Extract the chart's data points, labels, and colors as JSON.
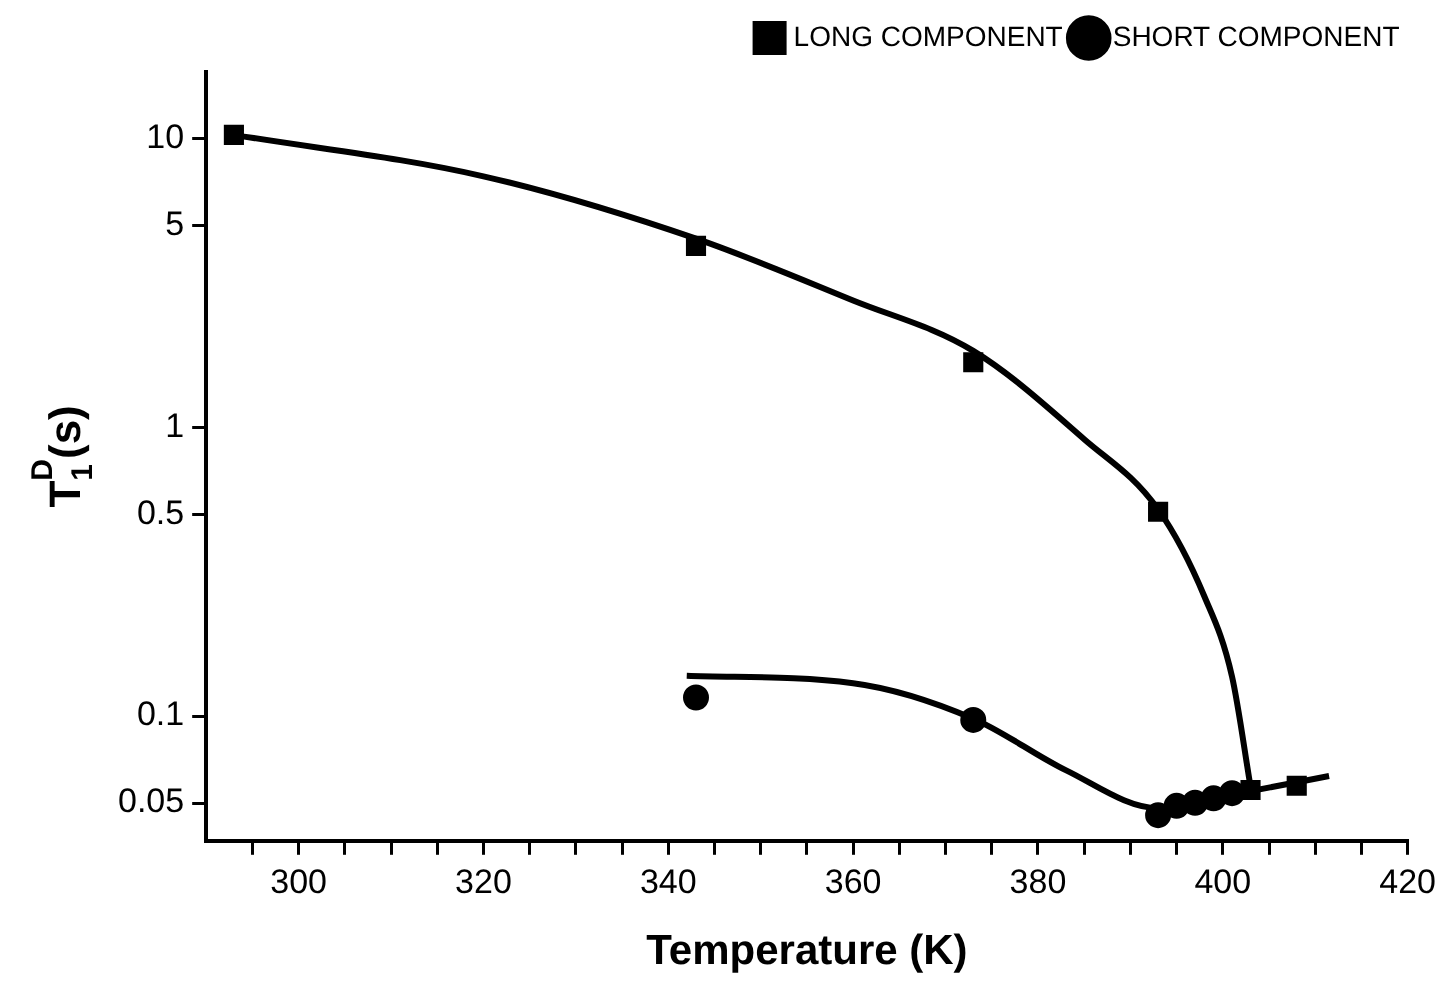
{
  "chart_data": {
    "type": "scatter",
    "xlabel": "Temperature (K)",
    "ylabel": "T$_{1}$$^{D}$(s)",
    "log": "y",
    "xlim": [
      290,
      420
    ],
    "xticks": [
      {
        "value": 295,
        "label": null
      },
      300,
      {
        "value": 305,
        "label": null
      },
      {
        "value": 310,
        "label": null
      },
      {
        "value": 315,
        "label": null
      },
      320,
      {
        "value": 325,
        "label": null
      },
      {
        "value": 330,
        "label": null
      },
      {
        "value": 335,
        "label": null
      },
      340,
      {
        "value": 345,
        "label": null
      },
      {
        "value": 350,
        "label": null
      },
      {
        "value": 355,
        "label": null
      },
      360,
      {
        "value": 365,
        "label": null
      },
      {
        "value": 370,
        "label": null
      },
      {
        "value": 375,
        "label": null
      },
      380,
      {
        "value": 385,
        "label": null
      },
      {
        "value": 390,
        "label": null
      },
      {
        "value": 395,
        "label": null
      },
      400,
      {
        "value": 405,
        "label": null
      },
      {
        "value": 410,
        "label": null
      },
      {
        "value": 415,
        "label": null
      },
      420
    ],
    "ylim": [
      0.037,
      17
    ],
    "yticks": [
      0.05,
      0.1,
      0.5,
      1,
      5,
      10
    ],
    "grid": false,
    "legend": "top right",
    "series": [
      {
        "name": "LONG COMPONENT",
        "color": "#000000",
        "marker": "square",
        "x": [
          293,
          343,
          373,
          393,
          403,
          408
        ],
        "values": [
          10.3,
          4.25,
          1.68,
          0.51,
          0.0555,
          0.0574
        ]
      },
      {
        "name": "SHORT COMPONENT",
        "color": "#000000",
        "marker": "circle",
        "x": [
          343,
          373,
          393,
          395,
          397,
          399,
          401
        ],
        "values": [
          0.116,
          0.097,
          0.0454,
          0.0489,
          0.0501,
          0.0519,
          0.0541
        ]
      },
      {
        "type": "line",
        "color": "#000000",
        "marker": "none",
        "x": [
          293,
          320,
          343,
          360,
          373,
          385,
          393,
          398,
          401,
          403
        ],
        "values": [
          10.3,
          7.4,
          4.5,
          2.75,
          1.84,
          0.91,
          0.52,
          0.26,
          0.137,
          0.057
        ]
      },
      {
        "type": "line",
        "color": "#000000",
        "marker": "none",
        "x": [
          342,
          360,
          373,
          383,
          393,
          403,
          411.5
        ],
        "values": [
          0.138,
          0.13,
          0.098,
          0.065,
          0.048,
          0.055,
          0.062
        ]
      }
    ]
  }
}
